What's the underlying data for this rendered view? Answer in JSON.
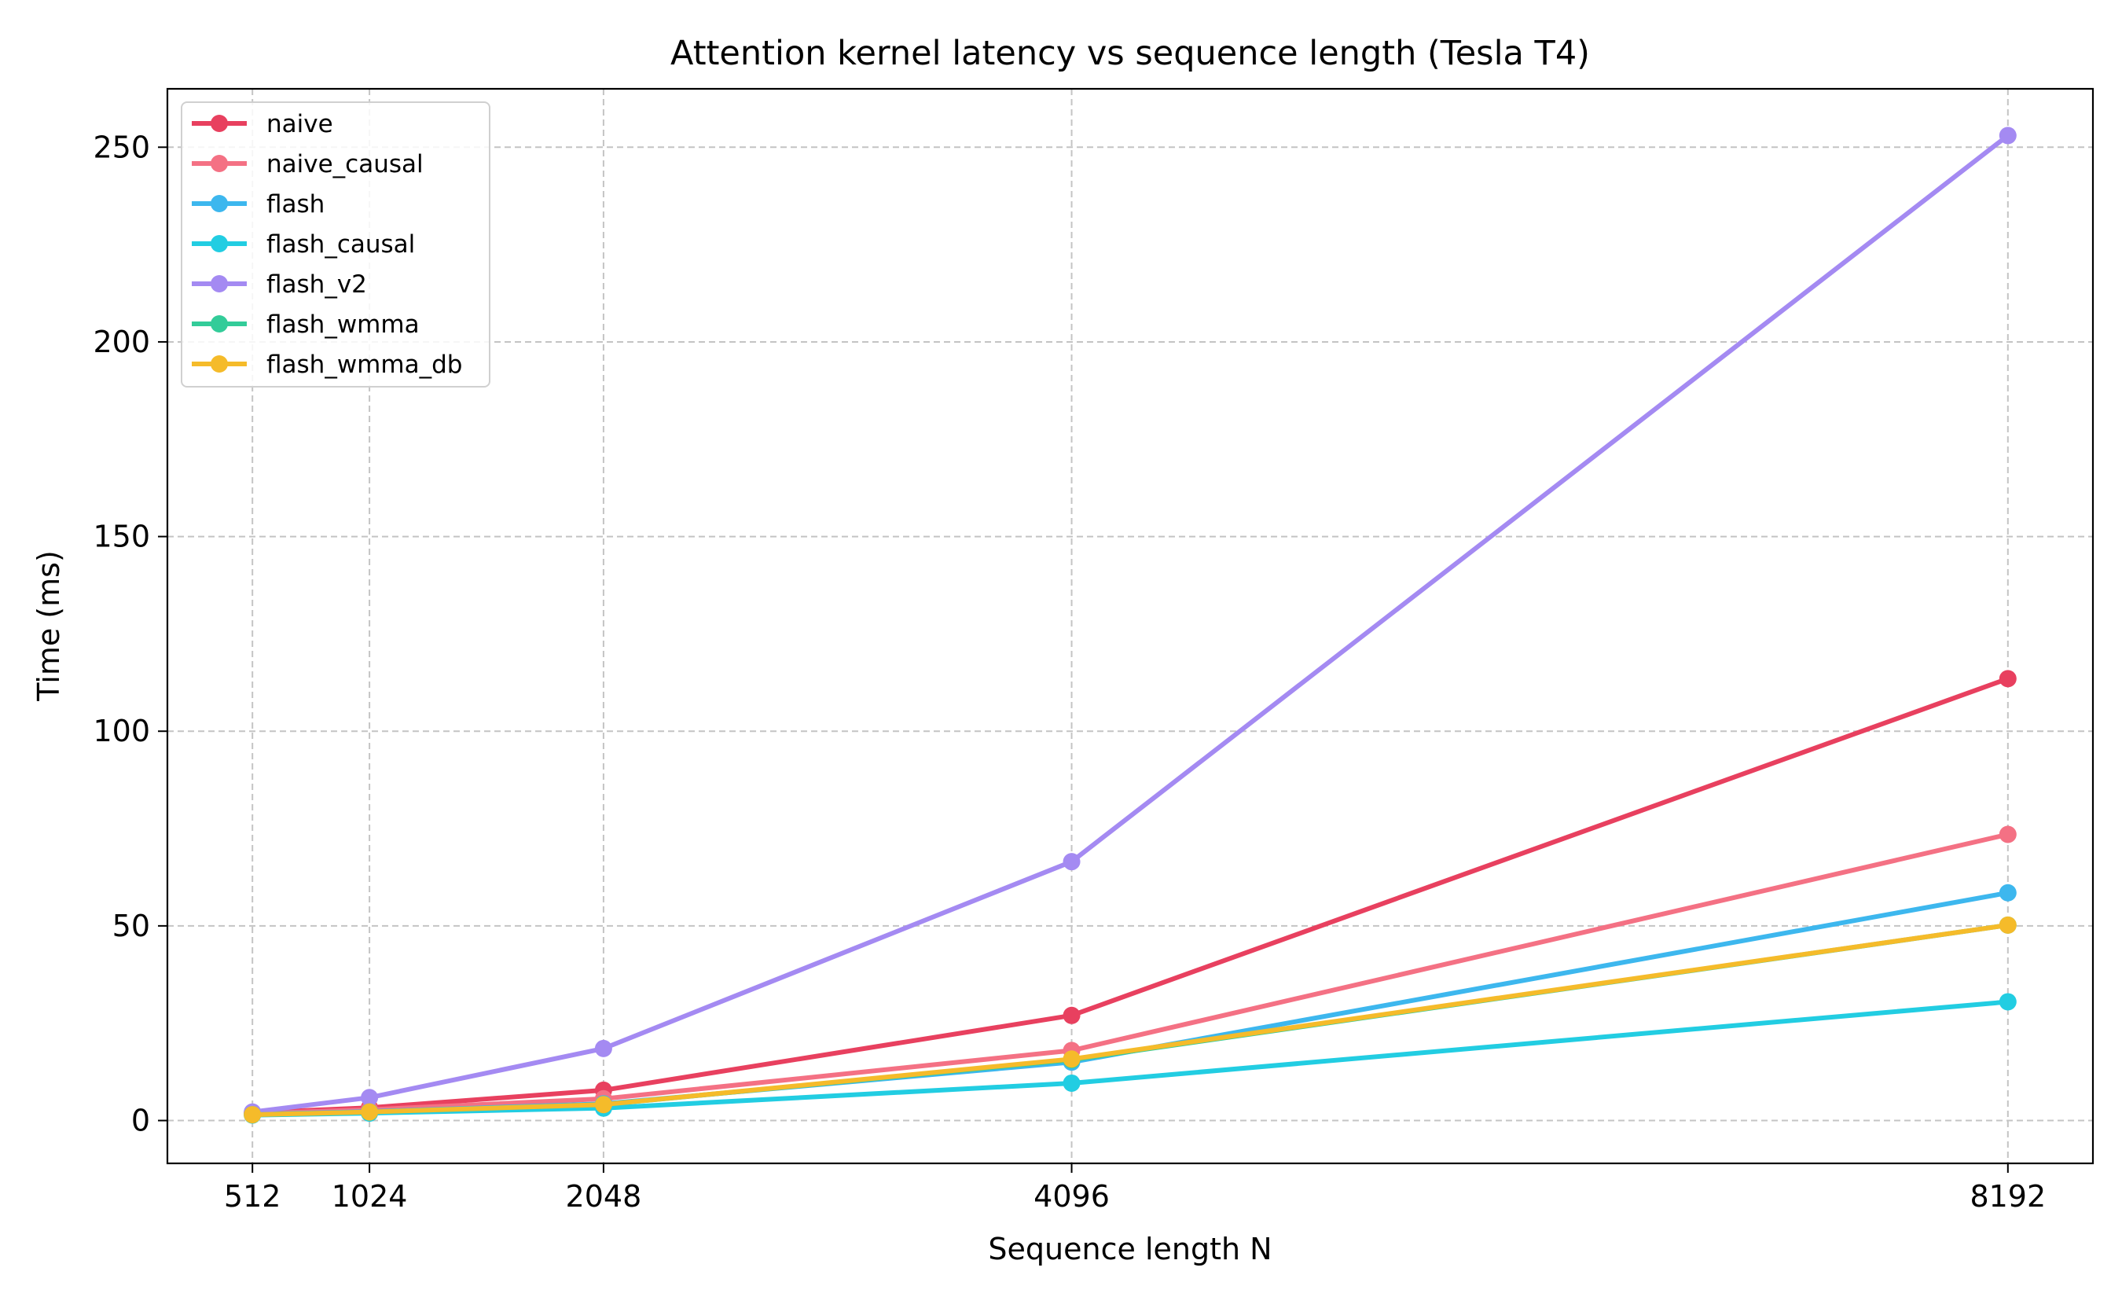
{
  "chart_data": {
    "type": "line",
    "title": "Attention kernel latency vs sequence length (Tesla T4)",
    "xlabel": "Sequence length N",
    "ylabel": "Time (ms)",
    "x": [
      512,
      1024,
      2048,
      4096,
      8192
    ],
    "xticks": [
      "512",
      "1024",
      "2048",
      "4096",
      "8192"
    ],
    "yticks": [
      "0",
      "50",
      "100",
      "150",
      "200",
      "250"
    ],
    "xlim": [
      140,
      8564
    ],
    "ylim": [
      -11,
      265
    ],
    "grid": true,
    "legend_position": "upper-left",
    "series": [
      {
        "name": "naive",
        "color": "#E8405F",
        "values": [
          2.0,
          3.3,
          7.8,
          27.0,
          113.5
        ]
      },
      {
        "name": "naive_causal",
        "color": "#F47184",
        "values": [
          1.8,
          2.8,
          5.6,
          18.0,
          73.5
        ]
      },
      {
        "name": "flash",
        "color": "#3DB7EE",
        "values": [
          1.6,
          2.3,
          4.3,
          15.0,
          58.5
        ]
      },
      {
        "name": "flash_causal",
        "color": "#22CDE2",
        "values": [
          1.4,
          1.9,
          3.2,
          9.6,
          30.5
        ]
      },
      {
        "name": "flash_v2",
        "color": "#A48AF2",
        "values": [
          2.2,
          5.9,
          18.5,
          66.5,
          253.0
        ]
      },
      {
        "name": "flash_wmma",
        "color": "#33CC99",
        "values": [
          1.5,
          2.2,
          4.1,
          15.6,
          50.2
        ]
      },
      {
        "name": "flash_wmma_db",
        "color": "#F5BB2A",
        "values": [
          1.5,
          2.2,
          4.1,
          15.8,
          50.2
        ]
      }
    ]
  }
}
